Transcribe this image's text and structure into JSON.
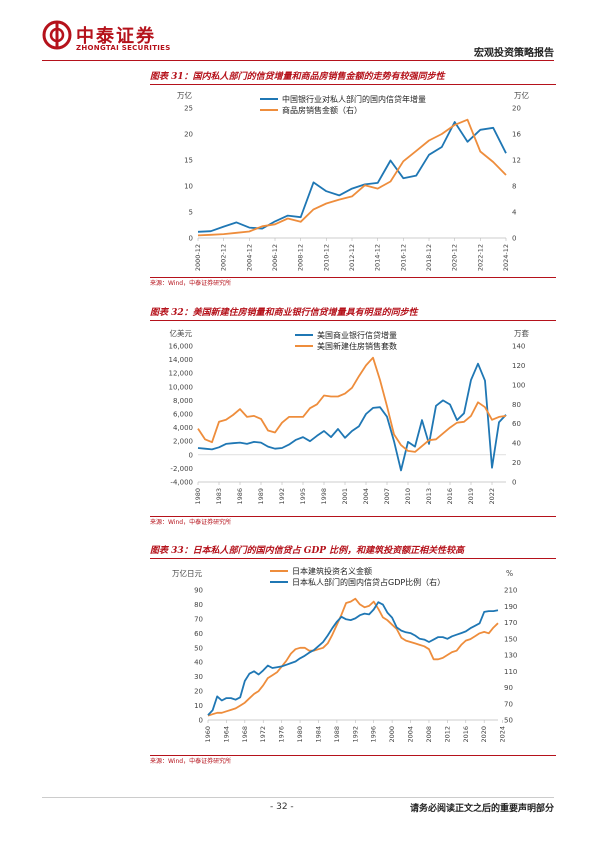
{
  "header": {
    "logo_cn": "中泰证券",
    "logo_en": "ZHONGTAI SECURITIES",
    "report_type": "宏观投资策略报告",
    "brand_color": "#b5121b"
  },
  "footer": {
    "page_number": "- 32 -",
    "disclaimer": "请务必阅读正文之后的重要声明部分"
  },
  "colors": {
    "blue": "#1f77b4",
    "orange": "#ee8d3c"
  },
  "chart_data": [
    {
      "id": "chart31",
      "type": "line",
      "title": "图表 31：国内私人部门的信贷增量和商品房销售金额的走势有较强同步性",
      "source": "来源：Wind，中泰证券研究所",
      "left_unit": "万亿",
      "right_unit": "万亿",
      "legend_position": "top-center",
      "x": [
        2000,
        2001,
        2002,
        2003,
        2004,
        2005,
        2006,
        2007,
        2008,
        2009,
        2010,
        2011,
        2012,
        2013,
        2014,
        2015,
        2016,
        2017,
        2018,
        2019,
        2020,
        2021,
        2022,
        2023,
        2024
      ],
      "x_ticks": [
        "2000-12",
        "2002-12",
        "2004-12",
        "2006-12",
        "2008-12",
        "2010-12",
        "2012-12",
        "2014-12",
        "2016-12",
        "2018-12",
        "2020-12",
        "2022-12",
        "2024-12"
      ],
      "ylim_left": [
        0,
        25
      ],
      "ylim_right": [
        0,
        20
      ],
      "yticks_left": [
        "0",
        "5",
        "10",
        "15",
        "20",
        "25"
      ],
      "yticks_right": [
        "0",
        "4",
        "8",
        "12",
        "16",
        "20"
      ],
      "series": [
        {
          "name": "中国银行业对私人部门的国内信贷年增量",
          "axis": "left",
          "values": [
            1.2,
            1.3,
            2.2,
            3.0,
            2.0,
            1.8,
            3.2,
            4.3,
            4.0,
            10.7,
            9.0,
            8.2,
            9.5,
            10.3,
            10.6,
            14.9,
            11.5,
            12.0,
            16.0,
            17.5,
            22.3,
            18.5,
            20.8,
            21.2,
            16.3
          ]
        },
        {
          "name": "商品房销售金额（右）",
          "axis": "right",
          "values": [
            0.4,
            0.5,
            0.6,
            0.8,
            1.0,
            1.8,
            2.1,
            3.0,
            2.5,
            4.4,
            5.3,
            5.9,
            6.4,
            8.1,
            7.6,
            8.7,
            11.8,
            13.4,
            15.0,
            16.0,
            17.4,
            18.2,
            13.3,
            11.7,
            9.7
          ]
        }
      ]
    },
    {
      "id": "chart32",
      "type": "line",
      "title": "图表 32：美国新建住房销量和商业银行信贷增量具有明显的同步性",
      "source": "来源：Wind，中泰证券研究所",
      "left_unit": "亿美元",
      "right_unit": "万套",
      "legend_position": "top-center",
      "x": [
        1980,
        1981,
        1982,
        1983,
        1984,
        1985,
        1986,
        1987,
        1988,
        1989,
        1990,
        1991,
        1992,
        1993,
        1994,
        1995,
        1996,
        1997,
        1998,
        1999,
        2000,
        2001,
        2002,
        2003,
        2004,
        2005,
        2006,
        2007,
        2008,
        2009,
        2010,
        2011,
        2012,
        2013,
        2014,
        2015,
        2016,
        2017,
        2018,
        2019,
        2020,
        2021,
        2022,
        2023,
        2024
      ],
      "x_ticks": [
        "1980",
        "1983",
        "1986",
        "1989",
        "1992",
        "1995",
        "1998",
        "2001",
        "2004",
        "2007",
        "2010",
        "2013",
        "2016",
        "2019",
        "2022"
      ],
      "ylim_left": [
        -4000,
        16000
      ],
      "ylim_right": [
        0,
        140
      ],
      "yticks_left": [
        "-4,000",
        "-2,000",
        "0",
        "2,000",
        "4,000",
        "6,000",
        "8,000",
        "10,000",
        "12,000",
        "14,000",
        "16,000"
      ],
      "yticks_right": [
        "0",
        "20",
        "40",
        "60",
        "80",
        "100",
        "120",
        "140"
      ],
      "series": [
        {
          "name": "美国商业银行信贷增量",
          "axis": "left",
          "values": [
            1000,
            900,
            800,
            1100,
            1600,
            1700,
            1800,
            1600,
            1900,
            1800,
            1200,
            900,
            1000,
            1500,
            2200,
            2600,
            2000,
            2800,
            3500,
            2600,
            3800,
            2500,
            3500,
            4200,
            6000,
            6900,
            7000,
            5600,
            2000,
            -2300,
            1900,
            1200,
            5100,
            1600,
            7200,
            8000,
            7400,
            5100,
            6100,
            11000,
            13400,
            10900,
            -1900,
            4800,
            5900
          ]
        },
        {
          "name": "美国新建住房销售套数",
          "axis": "right",
          "values": [
            55,
            44,
            41,
            62,
            64,
            69,
            75,
            67,
            68,
            65,
            53,
            51,
            61,
            67,
            67,
            67,
            76,
            80,
            89,
            88,
            88,
            91,
            97,
            109,
            120,
            128,
            105,
            78,
            49,
            38,
            32,
            31,
            37,
            43,
            44,
            50,
            56,
            61,
            62,
            68,
            82,
            77,
            64,
            67,
            68
          ]
        }
      ]
    },
    {
      "id": "chart33",
      "type": "line",
      "title": "图表 33：日本私人部门的国内信贷占 GDP 比例，和建筑投资额正相关性较高",
      "source": "来源：Wind，中泰证券研究所",
      "left_unit": "万亿日元",
      "right_unit": "%",
      "legend_position": "top-left",
      "x": [
        1960,
        1961,
        1962,
        1963,
        1964,
        1965,
        1966,
        1967,
        1968,
        1969,
        1970,
        1971,
        1972,
        1973,
        1974,
        1975,
        1976,
        1977,
        1978,
        1979,
        1980,
        1981,
        1982,
        1983,
        1984,
        1985,
        1986,
        1987,
        1988,
        1989,
        1990,
        1991,
        1992,
        1993,
        1994,
        1995,
        1996,
        1997,
        1998,
        1999,
        2000,
        2001,
        2002,
        2003,
        2004,
        2005,
        2006,
        2007,
        2008,
        2009,
        2010,
        2011,
        2012,
        2013,
        2014,
        2015,
        2016,
        2017,
        2018,
        2019,
        2020,
        2021,
        2022,
        2023
      ],
      "x_ticks": [
        "1960",
        "1964",
        "1968",
        "1972",
        "1976",
        "1980",
        "1984",
        "1988",
        "1992",
        "1996",
        "2000",
        "2004",
        "2008",
        "2012",
        "2016",
        "2020",
        "2024"
      ],
      "ylim_left": [
        0,
        90
      ],
      "ylim_right": [
        50,
        210
      ],
      "yticks_left": [
        "0",
        "10",
        "20",
        "30",
        "40",
        "50",
        "60",
        "70",
        "80",
        "90"
      ],
      "yticks_right": [
        "50",
        "70",
        "90",
        "110",
        "130",
        "150",
        "170",
        "190",
        "210"
      ],
      "series": [
        {
          "name": "日本建筑投资名义金额",
          "axis": "left",
          "values": [
            3,
            4,
            5,
            5,
            6,
            7,
            8,
            10,
            12,
            15,
            18,
            20,
            24,
            29,
            31,
            33,
            37,
            41,
            46,
            49,
            50,
            50,
            48,
            48,
            49,
            50,
            53,
            59,
            66,
            73,
            81,
            82,
            84,
            80,
            78,
            79,
            82,
            77,
            71,
            69,
            66,
            63,
            57,
            55,
            54,
            53,
            52,
            51,
            49,
            42,
            42,
            43,
            45,
            47,
            48,
            52,
            55,
            56,
            58,
            60,
            61,
            60,
            64,
            67
          ]
        },
        {
          "name": "日本私人部门的国内信贷占GDP比例（右）",
          "axis": "right",
          "values": [
            56,
            62,
            79,
            74,
            77,
            77,
            75,
            78,
            98,
            107,
            110,
            106,
            111,
            117,
            114,
            115,
            116,
            118,
            120,
            122,
            126,
            129,
            133,
            136,
            141,
            146,
            154,
            163,
            171,
            177,
            174,
            173,
            175,
            179,
            181,
            180,
            186,
            195,
            192,
            182,
            176,
            164,
            160,
            158,
            157,
            154,
            150,
            149,
            146,
            149,
            152,
            152,
            150,
            153,
            155,
            157,
            159,
            163,
            166,
            169,
            183,
            184,
            184,
            185
          ]
        }
      ]
    }
  ]
}
